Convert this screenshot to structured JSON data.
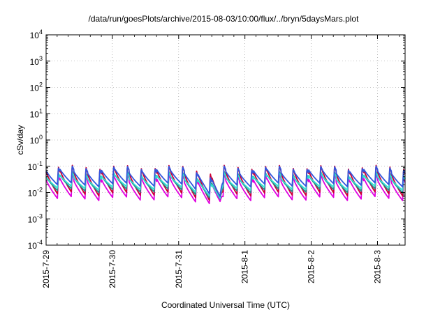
{
  "chart_data": {
    "type": "line",
    "title": "/data/run/goesPlots/archive/2015-08-03/10:00/flux/../bryn/5daysMars.plot",
    "xlabel": "Coordinated Universal Time (UTC)",
    "ylabel": "cSv/day",
    "y_scale": "log",
    "ylim": [
      0.0001,
      10000
    ],
    "y_ticks": [
      {
        "value": 0.0001,
        "exp": "-4"
      },
      {
        "value": 0.001,
        "exp": "-3"
      },
      {
        "value": 0.01,
        "exp": "-2"
      },
      {
        "value": 0.1,
        "exp": "-1"
      },
      {
        "value": 1,
        "exp": "0"
      },
      {
        "value": 10,
        "exp": "1"
      },
      {
        "value": 100,
        "exp": "2"
      },
      {
        "value": 1000,
        "exp": "3"
      },
      {
        "value": 10000,
        "exp": "4"
      }
    ],
    "y_tick_base": "10",
    "xlim": [
      "2015-07-29 00:00",
      "2015-08-03 10:00"
    ],
    "x_ticks": [
      "2015-7-29",
      "2015-7-30",
      "2015-7-31",
      "2015-8-1",
      "2015-8-2",
      "2015-8-3"
    ],
    "grid": true,
    "legend": "none",
    "cycle_hours": 5,
    "series_colors": [
      "#e000e0",
      "#cc0033",
      "#2a8a8a",
      "#30e0d0",
      "#3355dd"
    ],
    "series": [
      {
        "color": "#e000e0",
        "peak": 0.045,
        "trough": 0.006
      },
      {
        "color": "#cc0033",
        "peak": 0.1,
        "trough": 0.009
      },
      {
        "color": "#2a8a8a",
        "peak": 0.055,
        "trough": 0.012
      },
      {
        "color": "#30e0d0",
        "peak": 0.05,
        "trough": 0.015
      },
      {
        "color": "#3355dd",
        "peak": 0.09,
        "trough": 0.02
      }
    ],
    "dip": {
      "time": "2015-07-31 15:00",
      "min_value": 0.0014
    }
  }
}
